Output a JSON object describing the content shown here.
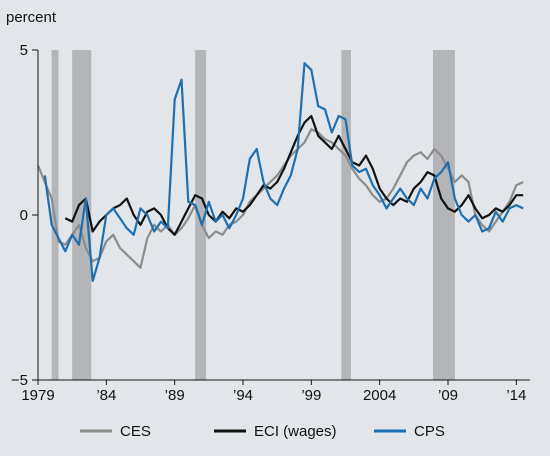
{
  "chart_data": {
    "type": "line",
    "ylabel": "percent",
    "ylim": [
      -5,
      5
    ],
    "xlim": [
      1979,
      2015
    ],
    "y_ticks": [
      {
        "value": 5,
        "label": "5"
      },
      {
        "value": 0,
        "label": "0"
      },
      {
        "value": -5,
        "label": "−5"
      }
    ],
    "x_ticks": [
      {
        "value": 1979,
        "label": "1979"
      },
      {
        "value": 1984,
        "label": "’84"
      },
      {
        "value": 1989,
        "label": "’89"
      },
      {
        "value": 1994,
        "label": "’94"
      },
      {
        "value": 1999,
        "label": "’99"
      },
      {
        "value": 2004,
        "label": "2004"
      },
      {
        "value": 2009,
        "label": "’09"
      },
      {
        "value": 2014,
        "label": "’14"
      }
    ],
    "recessions": [
      [
        1980.0,
        1980.5
      ],
      [
        1981.5,
        1982.9
      ],
      [
        1990.5,
        1991.3
      ],
      [
        2001.2,
        2001.9
      ],
      [
        2007.9,
        2009.5
      ]
    ],
    "legend_position": "bottom",
    "series": [
      {
        "name": "CES",
        "color": "#8c8c8c",
        "x": [
          1979.0,
          1979.5,
          1980.0,
          1980.5,
          1981.0,
          1981.5,
          1982.0,
          1982.5,
          1983.0,
          1983.5,
          1984.0,
          1984.5,
          1985.0,
          1985.5,
          1986.0,
          1986.5,
          1987.0,
          1987.5,
          1988.0,
          1988.5,
          1989.0,
          1989.5,
          1990.0,
          1990.5,
          1991.0,
          1991.5,
          1992.0,
          1992.5,
          1993.0,
          1993.5,
          1994.0,
          1994.5,
          1995.0,
          1995.5,
          1996.0,
          1996.5,
          1997.0,
          1997.5,
          1998.0,
          1998.5,
          1999.0,
          1999.5,
          2000.0,
          2000.5,
          2001.0,
          2001.5,
          2002.0,
          2002.5,
          2003.0,
          2003.5,
          2004.0,
          2004.5,
          2005.0,
          2005.5,
          2006.0,
          2006.5,
          2007.0,
          2007.5,
          2008.0,
          2008.5,
          2009.0,
          2009.5,
          2010.0,
          2010.5,
          2011.0,
          2011.5,
          2012.0,
          2012.5,
          2013.0,
          2013.5,
          2014.0,
          2014.5
        ],
        "y": [
          1.5,
          1.0,
          0.5,
          -0.8,
          -0.9,
          -0.6,
          -0.3,
          -1.0,
          -1.4,
          -1.3,
          -0.8,
          -0.6,
          -1.0,
          -1.2,
          -1.4,
          -1.6,
          -0.7,
          -0.3,
          -0.5,
          -0.3,
          -0.6,
          -0.4,
          -0.1,
          0.3,
          -0.3,
          -0.7,
          -0.5,
          -0.6,
          -0.3,
          -0.2,
          0.0,
          0.4,
          0.6,
          0.8,
          1.0,
          1.2,
          1.5,
          1.8,
          2.0,
          2.2,
          2.6,
          2.5,
          2.3,
          2.2,
          2.0,
          1.8,
          1.4,
          1.1,
          0.9,
          0.6,
          0.4,
          0.5,
          0.8,
          1.2,
          1.6,
          1.8,
          1.9,
          1.7,
          2.0,
          1.8,
          1.4,
          1.0,
          1.2,
          1.0,
          0.0,
          -0.3,
          -0.5,
          -0.2,
          0.1,
          0.4,
          0.9,
          1.0
        ]
      },
      {
        "name": "ECI (wages)",
        "color": "#111111",
        "x": [
          1981.0,
          1981.5,
          1982.0,
          1982.5,
          1983.0,
          1983.5,
          1984.0,
          1984.5,
          1985.0,
          1985.5,
          1986.0,
          1986.5,
          1987.0,
          1987.5,
          1988.0,
          1988.5,
          1989.0,
          1989.5,
          1990.0,
          1990.5,
          1991.0,
          1991.5,
          1992.0,
          1992.5,
          1993.0,
          1993.5,
          1994.0,
          1994.5,
          1995.0,
          1995.5,
          1996.0,
          1996.5,
          1997.0,
          1997.5,
          1998.0,
          1998.5,
          1999.0,
          1999.5,
          2000.0,
          2000.5,
          2001.0,
          2001.5,
          2002.0,
          2002.5,
          2003.0,
          2003.5,
          2004.0,
          2004.5,
          2005.0,
          2005.5,
          2006.0,
          2006.5,
          2007.0,
          2007.5,
          2008.0,
          2008.5,
          2009.0,
          2009.5,
          2010.0,
          2010.5,
          2011.0,
          2011.5,
          2012.0,
          2012.5,
          2013.0,
          2013.5,
          2014.0,
          2014.5
        ],
        "y": [
          -0.1,
          -0.2,
          0.3,
          0.5,
          -0.5,
          -0.2,
          0.0,
          0.2,
          0.3,
          0.5,
          0.0,
          -0.3,
          0.1,
          0.2,
          0.0,
          -0.4,
          -0.6,
          -0.2,
          0.2,
          0.6,
          0.5,
          0.0,
          -0.2,
          0.1,
          -0.1,
          0.2,
          0.1,
          0.3,
          0.6,
          0.9,
          0.8,
          1.0,
          1.4,
          1.9,
          2.4,
          2.8,
          3.0,
          2.4,
          2.2,
          2.0,
          2.4,
          2.0,
          1.6,
          1.5,
          1.8,
          1.4,
          0.8,
          0.5,
          0.3,
          0.5,
          0.4,
          0.8,
          1.0,
          1.3,
          1.2,
          0.5,
          0.2,
          0.1,
          0.3,
          0.6,
          0.2,
          -0.1,
          0.0,
          0.2,
          0.1,
          0.3,
          0.6,
          0.6
        ]
      },
      {
        "name": "CPS",
        "color": "#1f6fb0",
        "x": [
          1979.5,
          1980.0,
          1980.5,
          1981.0,
          1981.5,
          1982.0,
          1982.5,
          1983.0,
          1983.5,
          1984.0,
          1984.5,
          1985.0,
          1985.5,
          1986.0,
          1986.5,
          1987.0,
          1987.5,
          1988.0,
          1988.5,
          1989.0,
          1989.5,
          1990.0,
          1990.5,
          1991.0,
          1991.5,
          1992.0,
          1992.5,
          1993.0,
          1993.5,
          1994.0,
          1994.5,
          1995.0,
          1995.5,
          1996.0,
          1996.5,
          1997.0,
          1997.5,
          1998.0,
          1998.5,
          1999.0,
          1999.5,
          2000.0,
          2000.5,
          2001.0,
          2001.5,
          2002.0,
          2002.5,
          2003.0,
          2003.5,
          2004.0,
          2004.5,
          2005.0,
          2005.5,
          2006.0,
          2006.5,
          2007.0,
          2007.5,
          2008.0,
          2008.5,
          2009.0,
          2009.5,
          2010.0,
          2010.5,
          2011.0,
          2011.5,
          2012.0,
          2012.5,
          2013.0,
          2013.5,
          2014.0,
          2014.5
        ],
        "y": [
          1.2,
          -0.3,
          -0.7,
          -1.1,
          -0.6,
          -0.9,
          0.5,
          -2.0,
          -1.3,
          0.0,
          0.2,
          -0.1,
          -0.4,
          -0.6,
          0.2,
          0.0,
          -0.5,
          -0.2,
          -0.4,
          3.5,
          4.1,
          0.4,
          0.3,
          -0.3,
          0.4,
          -0.2,
          0.0,
          -0.4,
          0.0,
          0.5,
          1.7,
          2.0,
          1.0,
          0.5,
          0.3,
          0.8,
          1.2,
          2.0,
          4.6,
          4.4,
          3.3,
          3.2,
          2.5,
          3.0,
          2.9,
          1.5,
          1.3,
          1.4,
          0.9,
          0.6,
          0.2,
          0.5,
          0.8,
          0.5,
          0.3,
          0.8,
          0.5,
          1.1,
          1.3,
          1.6,
          0.5,
          0.0,
          -0.2,
          0.0,
          -0.5,
          -0.4,
          0.1,
          -0.2,
          0.2,
          0.3,
          0.2
        ]
      }
    ]
  }
}
